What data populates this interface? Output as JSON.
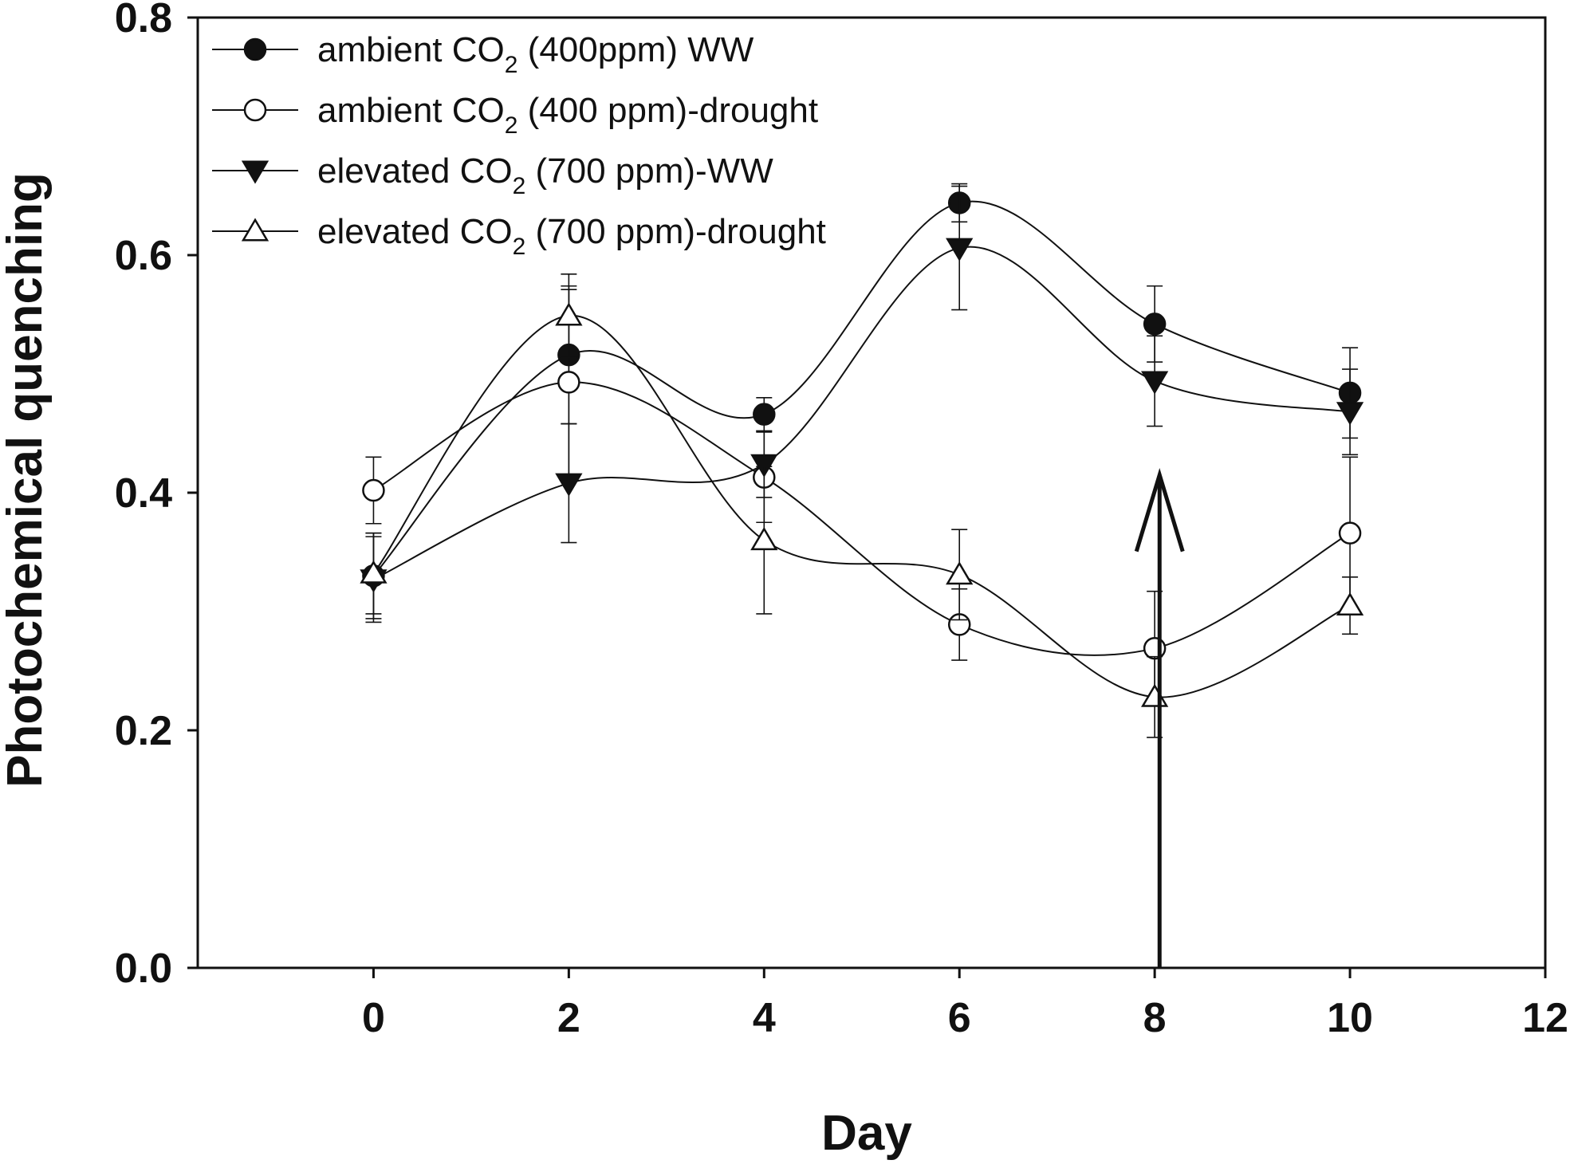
{
  "chart_data": {
    "type": "line",
    "title": "",
    "xlabel": "Day",
    "ylabel": "Photochemical quenching",
    "xlim": [
      -1.8,
      12
    ],
    "ylim": [
      0.0,
      0.8
    ],
    "x_ticks": [
      "0",
      "2",
      "4",
      "6",
      "8",
      "10",
      "12"
    ],
    "y_ticks": [
      "0.0",
      "0.2",
      "0.4",
      "0.6",
      "0.8"
    ],
    "grid": false,
    "legend_position": "top-left",
    "x": [
      0,
      2,
      4,
      6,
      8,
      10
    ],
    "series": [
      {
        "name_pre": "ambient CO",
        "name_sub": "2",
        "name_post": " (400ppm) WW",
        "marker": "filled-circle",
        "values": [
          0.33,
          0.516,
          0.466,
          0.644,
          0.542,
          0.484
        ],
        "errors": [
          0.036,
          0.058,
          0.014,
          0.016,
          0.032,
          0.038
        ]
      },
      {
        "name_pre": "ambient CO",
        "name_sub": "2",
        "name_post": " (400 ppm)-drought",
        "marker": "open-circle",
        "values": [
          0.402,
          0.493,
          0.413,
          0.289,
          0.269,
          0.366
        ],
        "errors": [
          0.028,
          0.078,
          0.038,
          0.03,
          0.048,
          0.064
        ]
      },
      {
        "name_pre": "elevated CO",
        "name_sub": "2",
        "name_post": " (700 ppm)-WW",
        "marker": "filled-triangle-down",
        "values": [
          0.327,
          0.408,
          0.424,
          0.606,
          0.494,
          0.468
        ],
        "errors": [
          0.036,
          0.05,
          0.028,
          0.052,
          0.038,
          0.036
        ]
      },
      {
        "name_pre": "elevated CO",
        "name_sub": "2",
        "name_post": " (700 ppm)-drought",
        "marker": "open-triangle-up",
        "values": [
          0.332,
          0.549,
          0.36,
          0.331,
          0.228,
          0.305
        ],
        "errors": [
          0.034,
          0.035,
          0.062,
          0.038,
          0.034,
          0.024
        ]
      }
    ],
    "annotations": [
      {
        "type": "arrow",
        "x": 8.05,
        "y_from": 0.0,
        "y_to": 0.415,
        "direction": "up"
      }
    ]
  }
}
